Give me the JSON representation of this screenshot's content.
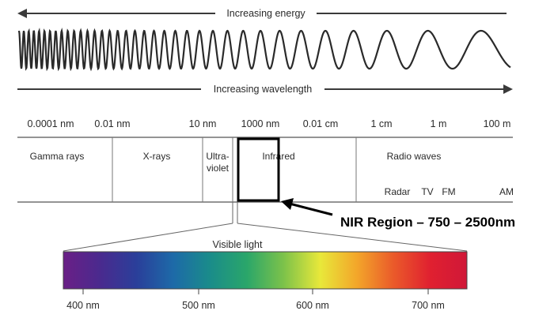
{
  "arrows": {
    "energy_label": "Increasing energy",
    "wavelength_label": "Increasing wavelength"
  },
  "scale_labels": [
    "0.0001 nm",
    "0.01 nm",
    "10 nm",
    "1000 nm",
    "0.01 cm",
    "1 cm",
    "1 m",
    "100 m"
  ],
  "regions": {
    "gamma": "Gamma rays",
    "xrays": "X-rays",
    "ultra_line1": "Ultra-",
    "ultra_line2": "violet",
    "infrared": "Infrared",
    "radio": "Radio waves",
    "radar": "Radar",
    "tv": "TV",
    "fm": "FM",
    "am": "AM"
  },
  "callout": "NIR Region – 750 – 2500nm",
  "visible": {
    "label": "Visible light",
    "ticks": [
      "400 nm",
      "500 nm",
      "600 nm",
      "700 nm"
    ]
  },
  "colors": {
    "line": "#3a3a3a",
    "highlight": "#000000",
    "spectrum": [
      "#6a1f86",
      "#4a2a8e",
      "#2a3f9a",
      "#1d6aa8",
      "#1a8c8a",
      "#2aa66a",
      "#7cc24a",
      "#e8e83a",
      "#f3a62a",
      "#ea5a2a",
      "#e02030",
      "#d01838"
    ]
  }
}
